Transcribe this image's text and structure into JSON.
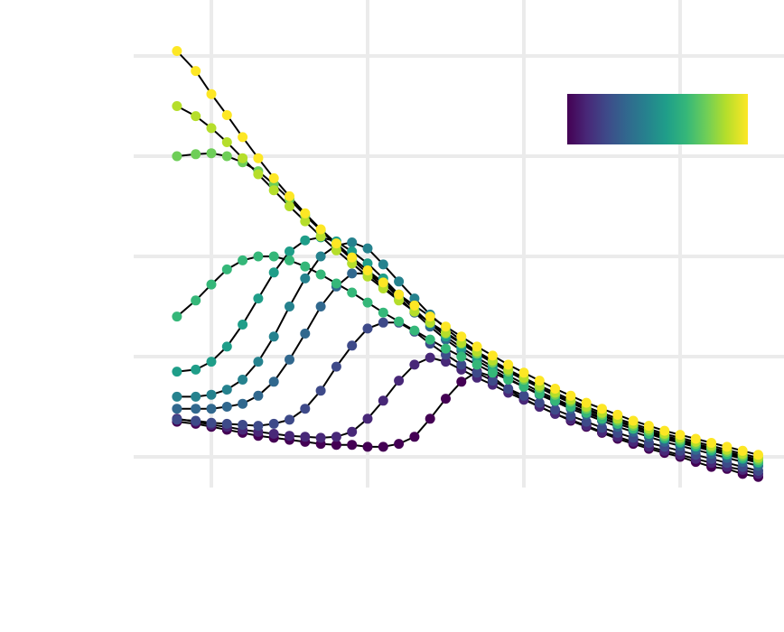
{
  "chart_data": {
    "type": "scatter",
    "title": "",
    "xlabel": "",
    "ylabel": "",
    "xlim": [
      -0.15,
      1.85
    ],
    "ylim": [
      0,
      4.2
    ],
    "x_gridlines": [
      0,
      0.5,
      1.0,
      1.5
    ],
    "y_gridlines": [
      0,
      1,
      2,
      3,
      4
    ],
    "grid": true,
    "legend": {
      "type": "colorbar",
      "placement": "top-right",
      "colormap": "viridis",
      "range": [
        0,
        1
      ]
    },
    "point_colors": [
      "#440154",
      "#482878",
      "#3e4a89",
      "#31688e",
      "#26828e",
      "#1f9e89",
      "#35b779",
      "#6ece58",
      "#b5de2b",
      "#fde725"
    ],
    "series": [
      {
        "color_value": 0.0,
        "x": [
          -0.11,
          -0.05,
          0.0,
          0.05,
          0.1,
          0.15,
          0.2,
          0.25,
          0.3,
          0.35,
          0.4,
          0.45,
          0.5,
          0.55,
          0.6,
          0.65,
          0.7,
          0.75,
          0.8,
          0.85,
          0.9,
          0.95,
          1.0,
          1.05,
          1.1,
          1.15,
          1.2,
          1.25,
          1.3,
          1.35,
          1.4,
          1.45,
          1.5,
          1.55,
          1.6,
          1.65,
          1.7,
          1.75
        ],
        "y": [
          0.35,
          0.33,
          0.3,
          0.27,
          0.24,
          0.21,
          0.19,
          0.17,
          0.15,
          0.13,
          0.12,
          0.12,
          0.1,
          0.1,
          0.13,
          0.2,
          0.38,
          0.58,
          0.75,
          0.85,
          0.8,
          0.67,
          0.58,
          0.5,
          0.43,
          0.36,
          0.3,
          0.24,
          0.18,
          0.13,
          0.08,
          0.04,
          0.0,
          -0.05,
          -0.1,
          -0.12,
          -0.17,
          -0.2
        ]
      },
      {
        "color_value": 0.11,
        "x": [
          -0.11,
          -0.05,
          0.0,
          0.05,
          0.1,
          0.15,
          0.2,
          0.25,
          0.3,
          0.35,
          0.4,
          0.45,
          0.5,
          0.55,
          0.6,
          0.65,
          0.7,
          0.75,
          0.8,
          0.85,
          0.9,
          0.95,
          1.0,
          1.05,
          1.1,
          1.15,
          1.2,
          1.25,
          1.3,
          1.35,
          1.4,
          1.45,
          1.5,
          1.55,
          1.6,
          1.65,
          1.7,
          1.75
        ],
        "y": [
          0.38,
          0.35,
          0.32,
          0.3,
          0.27,
          0.25,
          0.23,
          0.21,
          0.2,
          0.19,
          0.2,
          0.25,
          0.38,
          0.56,
          0.76,
          0.92,
          0.99,
          0.95,
          0.87,
          0.79,
          0.72,
          0.64,
          0.57,
          0.5,
          0.43,
          0.37,
          0.31,
          0.25,
          0.2,
          0.15,
          0.1,
          0.06,
          0.02,
          -0.02,
          -0.06,
          -0.1,
          -0.13,
          -0.17
        ]
      },
      {
        "color_value": 0.22,
        "x": [
          -0.11,
          -0.05,
          0.0,
          0.05,
          0.1,
          0.15,
          0.2,
          0.25,
          0.3,
          0.35,
          0.4,
          0.45,
          0.5,
          0.55,
          0.6,
          0.65,
          0.7,
          0.75,
          0.8,
          0.85,
          0.9,
          0.95,
          1.0,
          1.05,
          1.1,
          1.15,
          1.2,
          1.25,
          1.3,
          1.35,
          1.4,
          1.45,
          1.5,
          1.55,
          1.6,
          1.65,
          1.7,
          1.75
        ],
        "y": [
          0.37,
          0.36,
          0.34,
          0.33,
          0.32,
          0.31,
          0.33,
          0.37,
          0.48,
          0.66,
          0.9,
          1.11,
          1.28,
          1.34,
          1.34,
          1.25,
          1.13,
          1.02,
          0.92,
          0.84,
          0.76,
          0.68,
          0.61,
          0.54,
          0.47,
          0.41,
          0.35,
          0.29,
          0.24,
          0.19,
          0.14,
          0.1,
          0.06,
          0.02,
          -0.02,
          -0.06,
          -0.1,
          -0.14
        ]
      },
      {
        "color_value": 0.33,
        "x": [
          -0.11,
          -0.05,
          0.0,
          0.05,
          0.1,
          0.15,
          0.2,
          0.25,
          0.3,
          0.35,
          0.4,
          0.45,
          0.5,
          0.55,
          0.6,
          0.65,
          0.7,
          0.75,
          0.8,
          0.85,
          0.9,
          0.95,
          1.0,
          1.05,
          1.1,
          1.15,
          1.2,
          1.25,
          1.3,
          1.35,
          1.4,
          1.45,
          1.5,
          1.55,
          1.6,
          1.65,
          1.7,
          1.75
        ],
        "y": [
          0.48,
          0.48,
          0.48,
          0.5,
          0.53,
          0.61,
          0.75,
          0.97,
          1.23,
          1.5,
          1.7,
          1.83,
          1.83,
          1.74,
          1.59,
          1.44,
          1.3,
          1.17,
          1.06,
          0.96,
          0.87,
          0.78,
          0.7,
          0.62,
          0.55,
          0.48,
          0.42,
          0.36,
          0.3,
          0.25,
          0.2,
          0.15,
          0.11,
          0.07,
          0.03,
          -0.01,
          -0.05,
          -0.09
        ]
      },
      {
        "color_value": 0.44,
        "x": [
          -0.11,
          -0.05,
          0.0,
          0.05,
          0.1,
          0.15,
          0.2,
          0.25,
          0.3,
          0.35,
          0.4,
          0.45,
          0.5,
          0.55,
          0.6,
          0.65,
          0.7,
          0.75,
          0.8,
          0.85,
          0.9,
          0.95,
          1.0,
          1.05,
          1.1,
          1.15,
          1.2,
          1.25,
          1.3,
          1.35,
          1.4,
          1.45,
          1.5,
          1.55,
          1.6,
          1.65,
          1.7,
          1.75
        ],
        "y": [
          0.6,
          0.6,
          0.62,
          0.67,
          0.77,
          0.95,
          1.2,
          1.5,
          1.78,
          2.0,
          2.11,
          2.14,
          2.08,
          1.92,
          1.75,
          1.58,
          1.42,
          1.28,
          1.16,
          1.05,
          0.95,
          0.85,
          0.77,
          0.69,
          0.61,
          0.54,
          0.47,
          0.41,
          0.35,
          0.3,
          0.25,
          0.2,
          0.16,
          0.12,
          0.08,
          0.04,
          0.0,
          -0.04
        ]
      },
      {
        "color_value": 0.55,
        "x": [
          -0.11,
          -0.05,
          0.0,
          0.05,
          0.1,
          0.15,
          0.2,
          0.25,
          0.3,
          0.35,
          0.4,
          0.45,
          0.5,
          0.55,
          0.6,
          0.65,
          0.7,
          0.75,
          0.8,
          0.85,
          0.9,
          0.95,
          1.0,
          1.05,
          1.1,
          1.15,
          1.2,
          1.25,
          1.3,
          1.35,
          1.4,
          1.45,
          1.5,
          1.55,
          1.6,
          1.65,
          1.7,
          1.75
        ],
        "y": [
          0.85,
          0.87,
          0.95,
          1.1,
          1.32,
          1.58,
          1.84,
          2.05,
          2.16,
          2.19,
          2.15,
          2.05,
          1.93,
          1.78,
          1.62,
          1.47,
          1.33,
          1.2,
          1.09,
          0.99,
          0.9,
          0.81,
          0.73,
          0.65,
          0.58,
          0.51,
          0.45,
          0.39,
          0.33,
          0.28,
          0.23,
          0.18,
          0.14,
          0.1,
          0.06,
          0.02,
          -0.02,
          -0.06
        ]
      },
      {
        "color_value": 0.66,
        "x": [
          -0.11,
          -0.05,
          0.0,
          0.05,
          0.1,
          0.15,
          0.2,
          0.25,
          0.3,
          0.35,
          0.4,
          0.45,
          0.5,
          0.55,
          0.6,
          0.65,
          0.7,
          0.75,
          0.8,
          0.85,
          0.9,
          0.95,
          1.0,
          1.05,
          1.1,
          1.15,
          1.2,
          1.25,
          1.3,
          1.35,
          1.4,
          1.45,
          1.5,
          1.55,
          1.6,
          1.65,
          1.7,
          1.75
        ],
        "y": [
          1.4,
          1.56,
          1.72,
          1.87,
          1.96,
          2.0,
          2.0,
          1.96,
          1.9,
          1.82,
          1.73,
          1.64,
          1.54,
          1.44,
          1.35,
          1.26,
          1.17,
          1.08,
          1.0,
          0.92,
          0.84,
          0.77,
          0.7,
          0.63,
          0.56,
          0.5,
          0.44,
          0.38,
          0.33,
          0.28,
          0.23,
          0.19,
          0.15,
          0.11,
          0.07,
          0.03,
          -0.01,
          -0.05
        ]
      },
      {
        "color_value": 0.77,
        "x": [
          -0.11,
          -0.05,
          0.0,
          0.05,
          0.1,
          0.15,
          0.2,
          0.25,
          0.3,
          0.35,
          0.4,
          0.45,
          0.5,
          0.55,
          0.6,
          0.65,
          0.7,
          0.75,
          0.8,
          0.85,
          0.9,
          0.95,
          1.0,
          1.05,
          1.1,
          1.15,
          1.2,
          1.25,
          1.3,
          1.35,
          1.4,
          1.45,
          1.5,
          1.55,
          1.6,
          1.65,
          1.7,
          1.75
        ],
        "y": [
          3.0,
          3.02,
          3.03,
          3.0,
          2.94,
          2.85,
          2.72,
          2.57,
          2.41,
          2.26,
          2.11,
          1.97,
          1.83,
          1.7,
          1.57,
          1.45,
          1.34,
          1.23,
          1.13,
          1.03,
          0.94,
          0.85,
          0.77,
          0.69,
          0.62,
          0.55,
          0.48,
          0.42,
          0.36,
          0.31,
          0.26,
          0.21,
          0.17,
          0.13,
          0.09,
          0.05,
          0.01,
          -0.03
        ]
      },
      {
        "color_value": 0.88,
        "x": [
          -0.11,
          -0.05,
          0.0,
          0.05,
          0.1,
          0.15,
          0.2,
          0.25,
          0.3,
          0.35,
          0.4,
          0.45,
          0.5,
          0.55,
          0.6,
          0.65,
          0.7,
          0.75,
          0.8,
          0.85,
          0.9,
          0.95,
          1.0,
          1.05,
          1.1,
          1.15,
          1.2,
          1.25,
          1.3,
          1.35,
          1.4,
          1.45,
          1.5,
          1.55,
          1.6,
          1.65,
          1.7,
          1.75
        ],
        "y": [
          3.5,
          3.4,
          3.28,
          3.14,
          2.98,
          2.82,
          2.66,
          2.5,
          2.35,
          2.2,
          2.06,
          1.93,
          1.8,
          1.68,
          1.56,
          1.45,
          1.34,
          1.24,
          1.14,
          1.05,
          0.96,
          0.87,
          0.79,
          0.71,
          0.64,
          0.57,
          0.5,
          0.44,
          0.38,
          0.33,
          0.28,
          0.23,
          0.19,
          0.15,
          0.11,
          0.07,
          0.03,
          -0.01
        ]
      },
      {
        "color_value": 1.0,
        "x": [
          -0.11,
          -0.05,
          0.0,
          0.05,
          0.1,
          0.15,
          0.2,
          0.25,
          0.3,
          0.35,
          0.4,
          0.45,
          0.5,
          0.55,
          0.6,
          0.65,
          0.7,
          0.75,
          0.8,
          0.85,
          0.9,
          0.95,
          1.0,
          1.05,
          1.1,
          1.15,
          1.2,
          1.25,
          1.3,
          1.35,
          1.4,
          1.45,
          1.5,
          1.55,
          1.6,
          1.65,
          1.7,
          1.75
        ],
        "y": [
          4.05,
          3.85,
          3.62,
          3.41,
          3.19,
          2.98,
          2.78,
          2.6,
          2.43,
          2.27,
          2.13,
          1.99,
          1.86,
          1.74,
          1.62,
          1.51,
          1.4,
          1.3,
          1.2,
          1.1,
          1.01,
          0.92,
          0.84,
          0.76,
          0.68,
          0.61,
          0.54,
          0.48,
          0.42,
          0.36,
          0.31,
          0.26,
          0.22,
          0.18,
          0.14,
          0.1,
          0.06,
          0.02
        ]
      }
    ]
  }
}
